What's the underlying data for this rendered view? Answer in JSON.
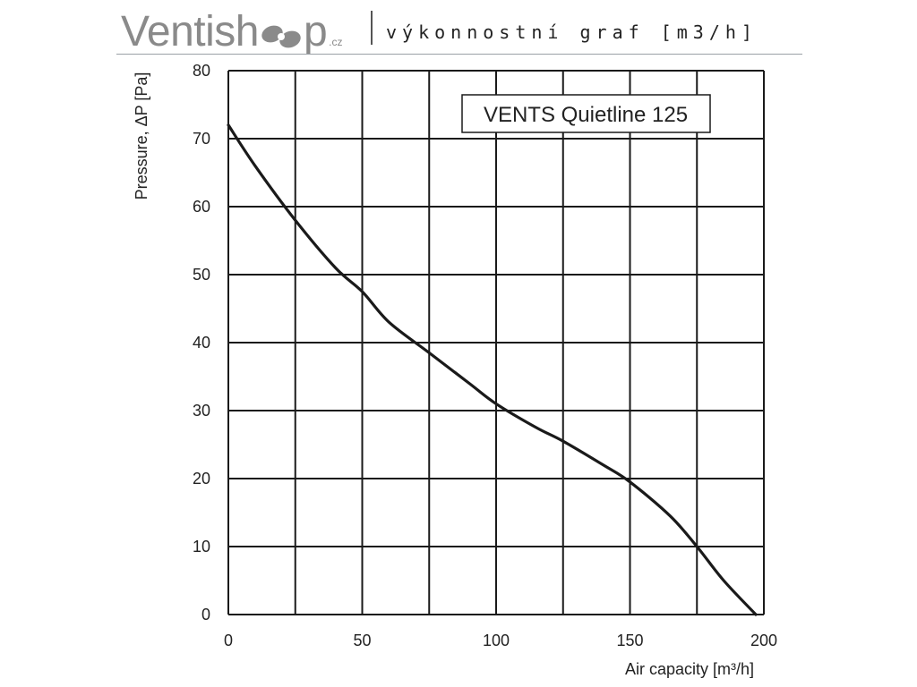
{
  "header": {
    "brand_prefix": "Ventish",
    "brand_suffix": "p",
    "brand_tld": ".cz",
    "subtitle": "výkonnostní graf [m3/h]",
    "logo_icon": "propeller-icon"
  },
  "chart_data": {
    "type": "line",
    "title": "VENTS Quietline 125",
    "xlabel": "Air capacity [m³/h]",
    "ylabel": "Pressure, ΔP [Pa]",
    "xlim": [
      0,
      200
    ],
    "ylim": [
      0,
      80
    ],
    "x_ticks": [
      "0",
      "50",
      "100",
      "150",
      "200"
    ],
    "y_ticks": [
      "0",
      "10",
      "20",
      "30",
      "40",
      "50",
      "60",
      "70",
      "80"
    ],
    "grid": true,
    "series": [
      {
        "x": [
          0,
          10,
          25,
          40,
          50,
          60,
          75,
          90,
          100,
          115,
          125,
          140,
          150,
          165,
          175,
          185,
          197
        ],
        "y": [
          72,
          66,
          58,
          51,
          47.5,
          43,
          38.5,
          34,
          31,
          27.5,
          25.5,
          22,
          19.5,
          14.5,
          10,
          5,
          0
        ]
      }
    ]
  }
}
